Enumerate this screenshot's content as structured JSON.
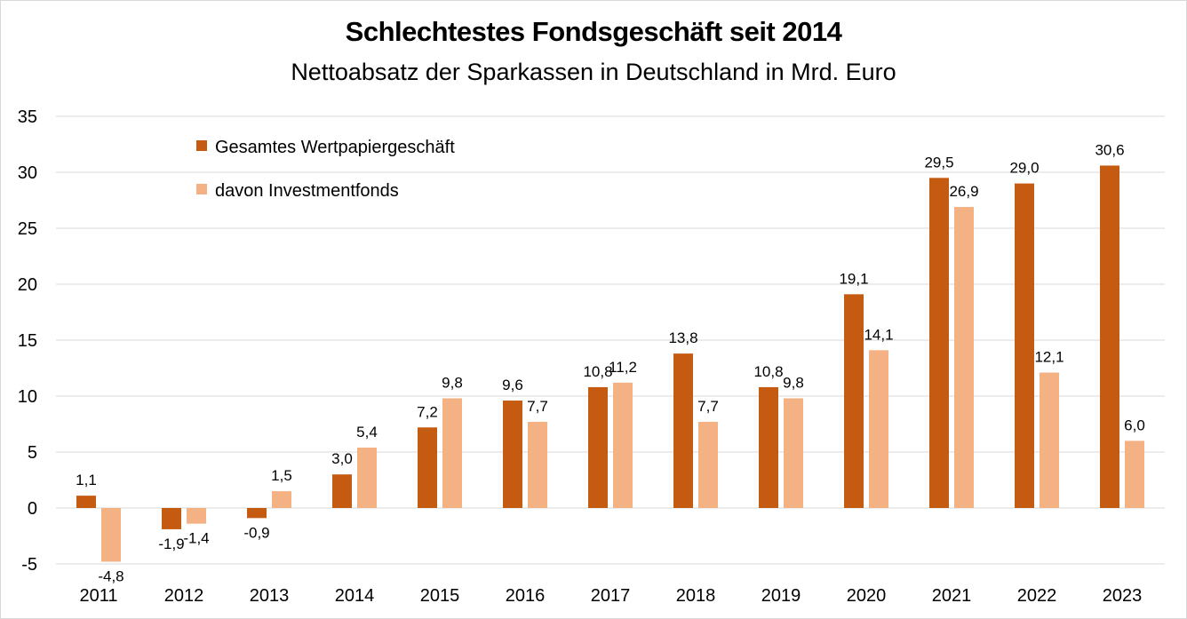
{
  "chart_data": {
    "type": "bar",
    "title": "Schlechtestes Fondsgeschäft seit 2014",
    "subtitle": "Nettoabsatz der Sparkassen in Deutschland in Mrd. Euro",
    "categories": [
      "2011",
      "2012",
      "2013",
      "2014",
      "2015",
      "2016",
      "2017",
      "2018",
      "2019",
      "2020",
      "2021",
      "2022",
      "2023"
    ],
    "series": [
      {
        "name": "Gesamtes Wertpapiergeschäft",
        "color": "#c55a11",
        "values": [
          1.1,
          -1.9,
          -0.9,
          3.0,
          7.2,
          9.6,
          10.8,
          13.8,
          10.8,
          19.1,
          29.5,
          29.0,
          30.6
        ],
        "labels": [
          "1,1",
          "-1,9",
          "-0,9",
          "3,0",
          "7,2",
          "9,6",
          "10,8",
          "13,8",
          "10,8",
          "19,1",
          "29,5",
          "29,0",
          "30,6"
        ]
      },
      {
        "name": "davon Investmentfonds",
        "color": "#f4b183",
        "values": [
          -4.8,
          -1.4,
          1.5,
          5.4,
          9.8,
          7.7,
          11.2,
          7.7,
          9.8,
          14.1,
          26.9,
          12.1,
          6.0
        ],
        "labels": [
          "-4,8",
          "-1,4",
          "1,5",
          "5,4",
          "9,8",
          "7,7",
          "11,2",
          "7,7",
          "9,8",
          "14,1",
          "26,9",
          "12,1",
          "6,0"
        ]
      }
    ],
    "ylim": [
      -5,
      35
    ],
    "yticks": [
      -5,
      0,
      5,
      10,
      15,
      20,
      25,
      30,
      35
    ],
    "grid": true,
    "legend_position": "top-left"
  }
}
